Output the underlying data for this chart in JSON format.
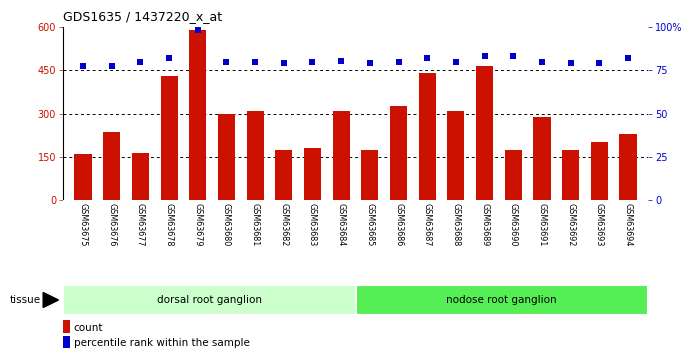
{
  "title": "GDS1635 / 1437220_x_at",
  "categories": [
    "GSM63675",
    "GSM63676",
    "GSM63677",
    "GSM63678",
    "GSM63679",
    "GSM63680",
    "GSM63681",
    "GSM63682",
    "GSM63683",
    "GSM63684",
    "GSM63685",
    "GSM63686",
    "GSM63687",
    "GSM63688",
    "GSM63689",
    "GSM63690",
    "GSM63691",
    "GSM63692",
    "GSM63693",
    "GSM63694"
  ],
  "count_values": [
    160,
    235,
    163,
    430,
    590,
    300,
    310,
    175,
    180,
    310,
    172,
    325,
    440,
    310,
    465,
    175,
    287,
    172,
    200,
    230
  ],
  "percentile_values": [
    77.5,
    77.5,
    80,
    82,
    98,
    80,
    80,
    79,
    80,
    80.5,
    79,
    80,
    82,
    80,
    83,
    83,
    79.5,
    79,
    79,
    82
  ],
  "bar_color": "#cc1100",
  "dot_color": "#0000cc",
  "left_ylim": [
    0,
    600
  ],
  "right_ylim": [
    0,
    100
  ],
  "left_yticks": [
    0,
    150,
    300,
    450,
    600
  ],
  "right_yticks": [
    0,
    25,
    50,
    75,
    100
  ],
  "right_yticklabels": [
    "0",
    "25",
    "50",
    "75",
    "100%"
  ],
  "group1_label": "dorsal root ganglion",
  "group2_label": "nodose root ganglion",
  "group1_color": "#ccffcc",
  "group2_color": "#55ee55",
  "group1_n": 10,
  "group2_n": 10,
  "tissue_label": "tissue",
  "legend_count_label": "count",
  "legend_pct_label": "percentile rank within the sample",
  "plot_bg_color": "#ffffff",
  "xtick_bg_color": "#d0d0d0",
  "dotted_line_color": "#000000"
}
